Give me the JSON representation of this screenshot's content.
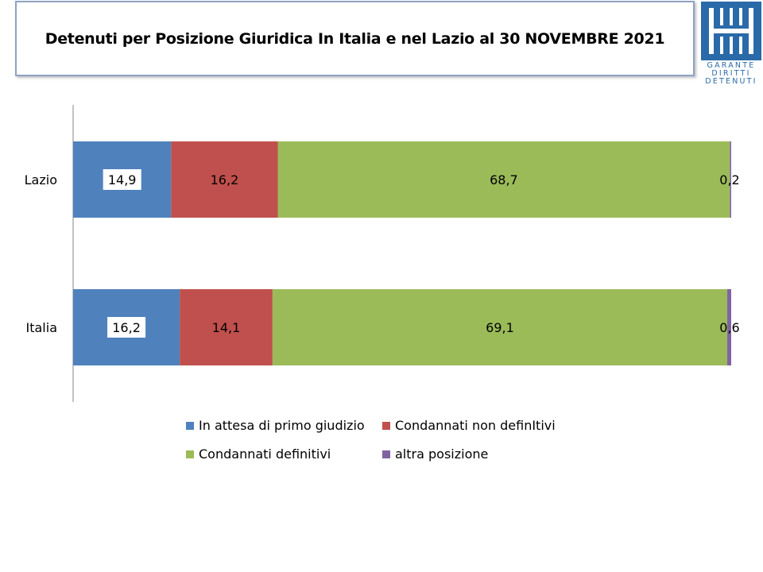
{
  "chart_data": {
    "type": "bar",
    "orientation": "horizontal",
    "stacked": true,
    "title": "Detenuti per Posizione Giuridica  In Italia e nel Lazio al 30 NOVEMBRE 2021",
    "categories": [
      "Lazio",
      "Italia"
    ],
    "series": [
      {
        "name": "In attesa di primo giudizio",
        "color": "#4f81bd",
        "values": [
          14.9,
          16.2
        ],
        "labels": [
          "14,9",
          "16,2"
        ]
      },
      {
        "name": "Condannati non definItivi",
        "color": "#c0504d",
        "values": [
          16.2,
          14.1
        ],
        "labels": [
          "16,2",
          "14,1"
        ]
      },
      {
        "name": "Condannati definitivi",
        "color": "#9bbb59",
        "values": [
          68.7,
          69.1
        ],
        "labels": [
          "68,7",
          "69,1"
        ]
      },
      {
        "name": "altra posizione",
        "color": "#8064a2",
        "values": [
          0.2,
          0.6
        ],
        "labels": [
          "0,2",
          "0,6"
        ]
      }
    ],
    "xlim": [
      0,
      100
    ],
    "legend_position": "bottom",
    "grid": false
  },
  "logo": {
    "lines": [
      "GARANTE",
      "DIRITTI",
      "DETENUTI"
    ]
  }
}
